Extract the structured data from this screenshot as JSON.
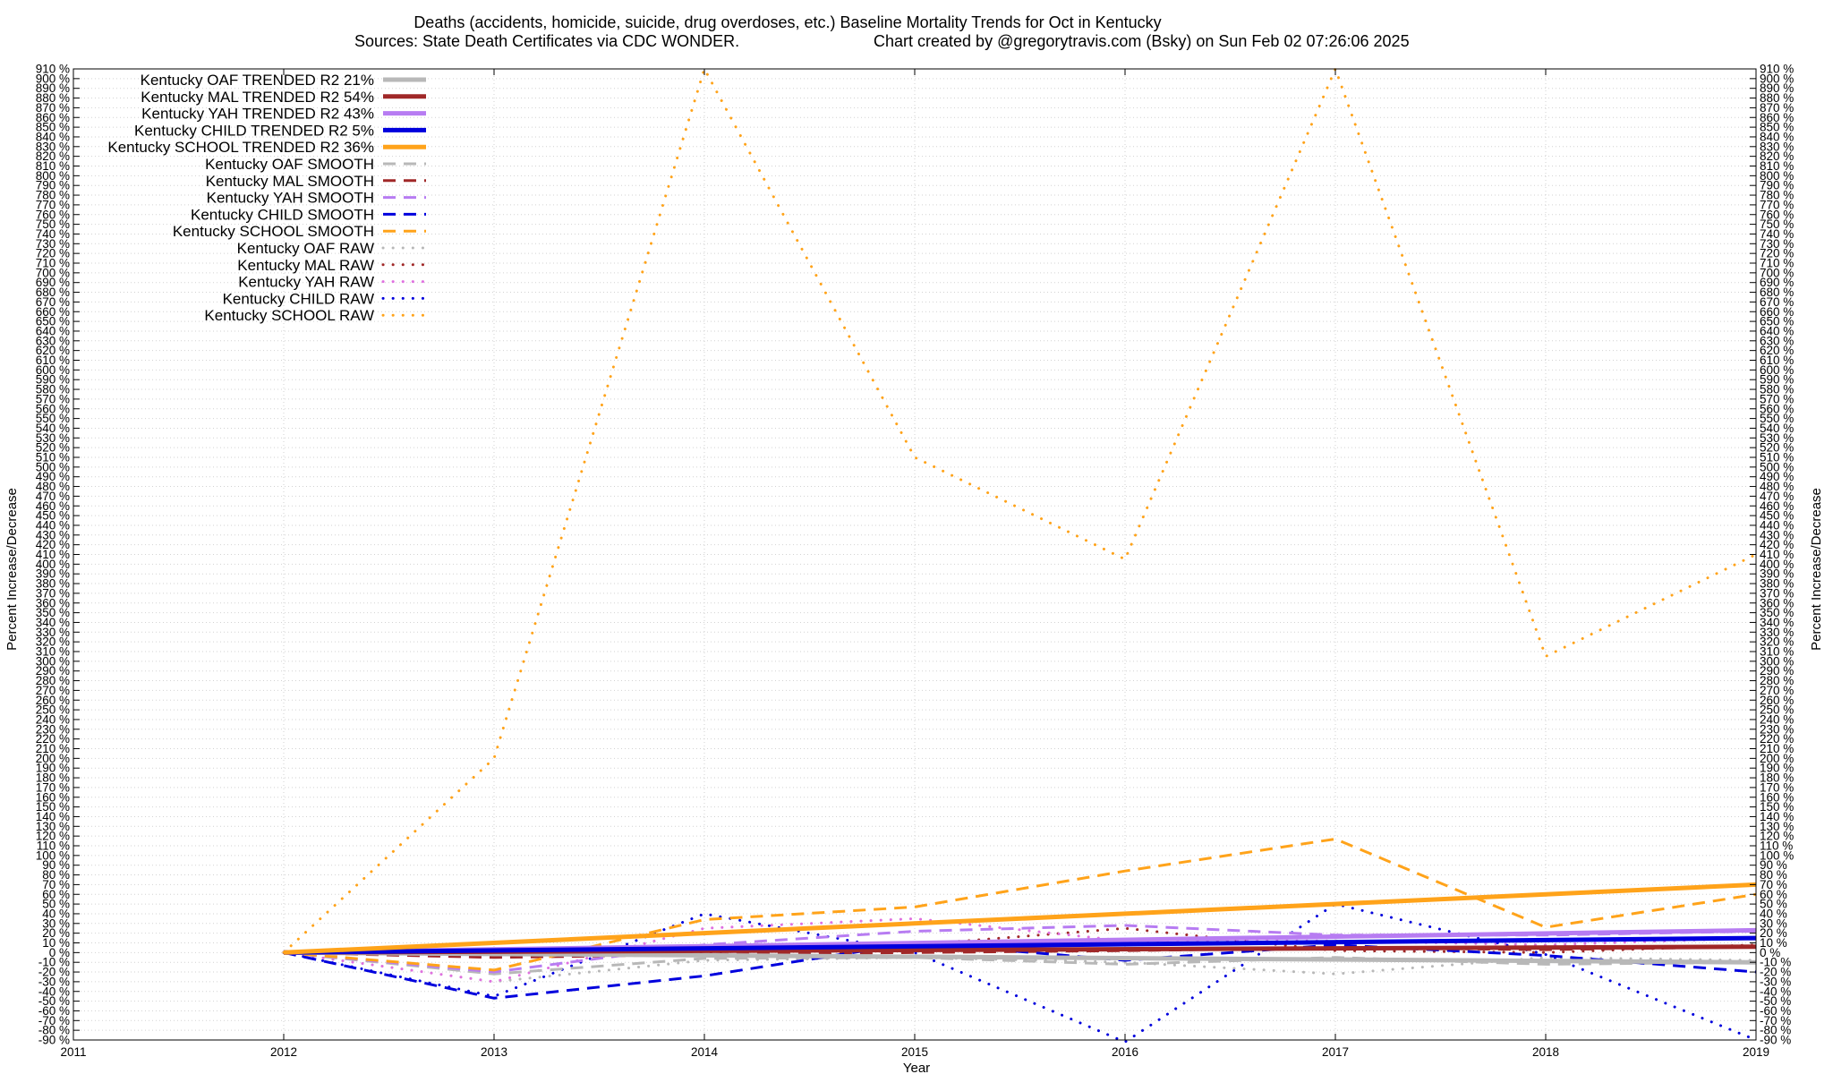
{
  "chart_data": {
    "type": "line",
    "title_line1": "Deaths (accidents, homicide, suicide, drug overdoses, etc.)  Baseline Mortality Trends for Oct in Kentucky",
    "title_line2_left": "Sources: State Death Certificates via CDC WONDER.",
    "title_line2_right": "Chart created by @gregorytravis.com (Bsky) on Sun Feb 02 07:26:06 2025",
    "xlabel": "Year",
    "ylabel_left": "Percent Increase/Decrease",
    "ylabel_right": "Percent Increase/Decrease",
    "xlim": [
      2011,
      2019
    ],
    "ylim": [
      -90,
      910
    ],
    "x_ticks": [
      2011,
      2012,
      2013,
      2014,
      2015,
      2016,
      2017,
      2018,
      2019
    ],
    "y_tick_step": 10,
    "y_tick_suffix": " %",
    "grid": true,
    "legend_position": "top-left",
    "series": [
      {
        "name": "Kentucky OAF TRENDED R2  21%",
        "style": "solid",
        "color": "#b8b8b8",
        "x": [
          2012,
          2019
        ],
        "values": [
          0,
          -10
        ]
      },
      {
        "name": "Kentucky MAL TRENDED R2  54%",
        "style": "solid",
        "color": "#a02828",
        "x": [
          2012,
          2019
        ],
        "values": [
          0,
          6
        ]
      },
      {
        "name": "Kentucky YAH TRENDED R2  43%",
        "style": "solid",
        "color": "#b77cf2",
        "x": [
          2012,
          2019
        ],
        "values": [
          0,
          23
        ]
      },
      {
        "name": "Kentucky CHILD TRENDED R2   5%",
        "style": "solid",
        "color": "#0000dd",
        "x": [
          2012,
          2019
        ],
        "values": [
          0,
          15
        ]
      },
      {
        "name": "Kentucky SCHOOL TRENDED R2  36%",
        "style": "solid",
        "color": "#ffa31a",
        "x": [
          2012,
          2019
        ],
        "values": [
          0,
          70
        ]
      },
      {
        "name": "Kentucky OAF SMOOTH",
        "style": "dashed",
        "color": "#b8b8b8",
        "x": [
          2012,
          2013,
          2014,
          2015,
          2016,
          2017,
          2018,
          2019
        ],
        "values": [
          0,
          -22,
          -6,
          -5,
          -12,
          -5,
          -12,
          -10
        ]
      },
      {
        "name": "Kentucky MAL SMOOTH",
        "style": "dashed",
        "color": "#a02828",
        "x": [
          2012,
          2013,
          2014,
          2015,
          2016,
          2017,
          2018,
          2019
        ],
        "values": [
          0,
          -5,
          -2,
          0,
          2,
          5,
          3,
          6
        ]
      },
      {
        "name": "Kentucky YAH SMOOTH",
        "style": "dashed",
        "color": "#b77cf2",
        "x": [
          2012,
          2013,
          2014,
          2015,
          2016,
          2017,
          2018,
          2019
        ],
        "values": [
          0,
          -20,
          8,
          22,
          28,
          18,
          18,
          22
        ]
      },
      {
        "name": "Kentucky CHILD SMOOTH",
        "style": "dashed",
        "color": "#0000dd",
        "x": [
          2012,
          2013,
          2014,
          2015,
          2016,
          2017,
          2018,
          2019
        ],
        "values": [
          0,
          -47,
          -24,
          10,
          -8,
          8,
          -3,
          -20
        ]
      },
      {
        "name": "Kentucky SCHOOL SMOOTH",
        "style": "dashed",
        "color": "#ffa31a",
        "x": [
          2012,
          2013,
          2014,
          2015,
          2016,
          2017,
          2018,
          2019
        ],
        "values": [
          0,
          -18,
          34,
          47,
          84,
          117,
          26,
          60
        ]
      },
      {
        "name": "Kentucky OAF RAW",
        "style": "dotted",
        "color": "#b8b8b8",
        "x": [
          2012,
          2013,
          2014,
          2015,
          2016,
          2017,
          2018,
          2019
        ],
        "values": [
          0,
          -30,
          -8,
          -5,
          -10,
          -22,
          -5,
          -8
        ]
      },
      {
        "name": "Kentucky MAL RAW",
        "style": "dotted",
        "color": "#a02828",
        "x": [
          2012,
          2013,
          2014,
          2015,
          2016,
          2017,
          2018,
          2019
        ],
        "values": [
          0,
          3,
          0,
          8,
          25,
          2,
          0,
          8
        ]
      },
      {
        "name": "Kentucky YAH RAW",
        "style": "dotted",
        "color": "#e070e0",
        "x": [
          2012,
          2013,
          2014,
          2015,
          2016,
          2017,
          2018,
          2019
        ],
        "values": [
          0,
          -30,
          25,
          35,
          12,
          12,
          8,
          15
        ]
      },
      {
        "name": "Kentucky CHILD RAW",
        "style": "dotted",
        "color": "#0000dd",
        "x": [
          2012,
          2013,
          2014,
          2015,
          2016,
          2017,
          2018,
          2019
        ],
        "values": [
          0,
          -45,
          40,
          0,
          -92,
          50,
          -2,
          -90
        ]
      },
      {
        "name": "Kentucky SCHOOL RAW",
        "style": "dotted",
        "color": "#ffa31a",
        "x": [
          2012,
          2013,
          2014,
          2015,
          2016,
          2017,
          2018,
          2019
        ],
        "values": [
          0,
          200,
          910,
          510,
          405,
          910,
          305,
          410
        ]
      }
    ]
  }
}
